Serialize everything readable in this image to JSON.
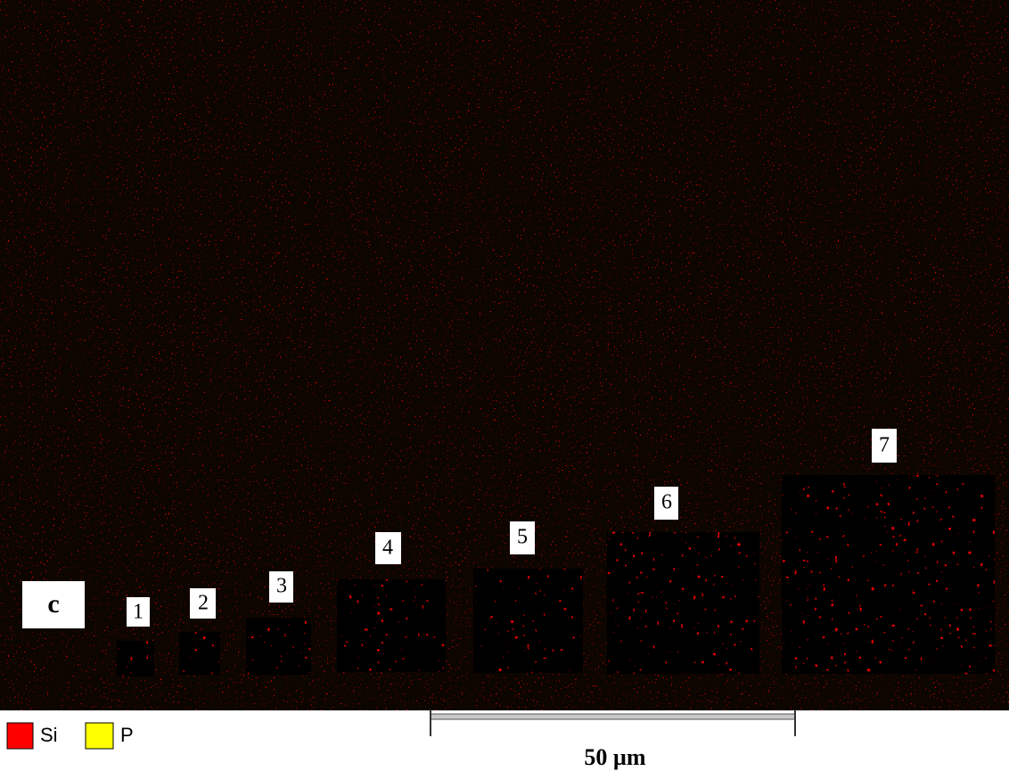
{
  "panel_label": "c",
  "regions": [
    {
      "label": "1"
    },
    {
      "label": "2"
    },
    {
      "label": "3"
    },
    {
      "label": "4"
    },
    {
      "label": "5"
    },
    {
      "label": "6"
    },
    {
      "label": "7"
    }
  ],
  "legend": [
    {
      "label": "Si",
      "color": "#ff0000"
    },
    {
      "label": "P",
      "color": "#ffff00"
    }
  ],
  "scale_bar": {
    "label": "50 µm"
  }
}
